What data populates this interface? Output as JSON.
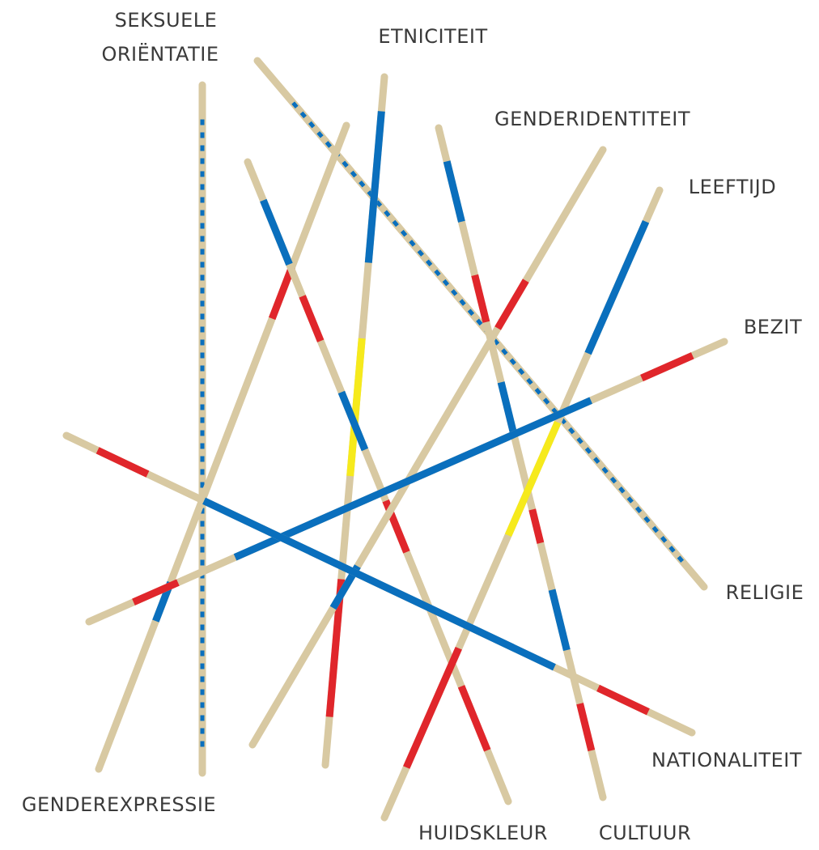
{
  "labels": {
    "seksuele_orientatie": [
      "SEKSUELE",
      "ORIËNTATIE"
    ],
    "etniciteit": "ETNICITEIT",
    "genderidentiteit": "GENDERIDENTITEIT",
    "leeftijd": "LEEFTIJD",
    "bezit": "BEZIT",
    "religie": "RELIGIE",
    "nationaliteit": "NATIONALITEIT",
    "cultuur": "CULTUUR",
    "huidskleur": "HUIDSKLEUR",
    "genderexpressie": "GENDEREXPRESSIE"
  }
}
